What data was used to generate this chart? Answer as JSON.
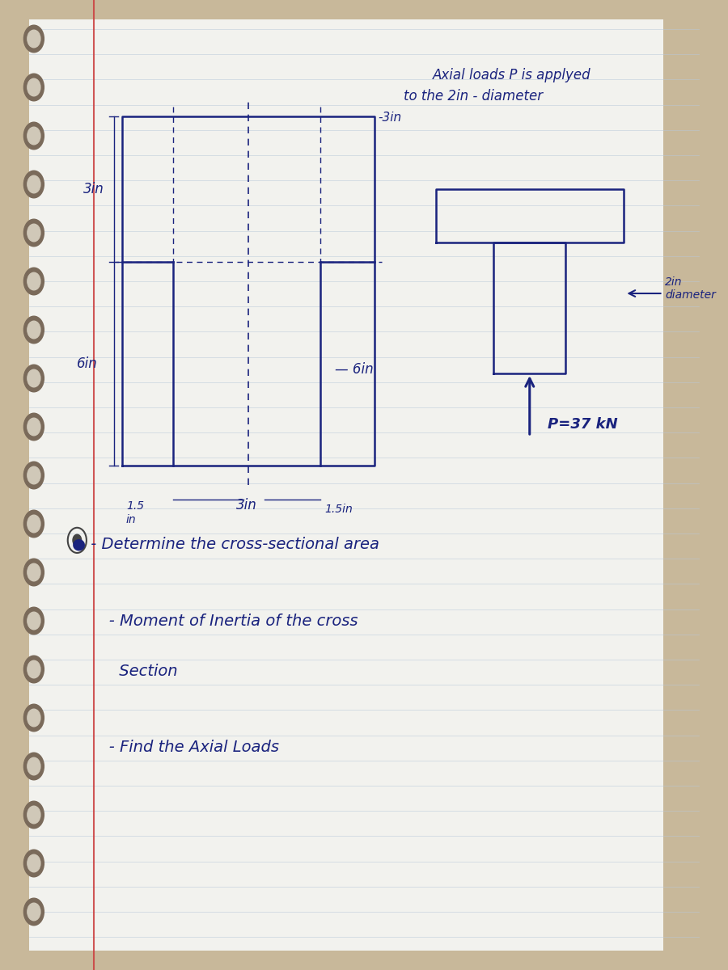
{
  "bg_color": "#c8b89a",
  "paper_color": "#f2f2ee",
  "line_color": "#b8c8d8",
  "ink_color": "#1a237e",
  "red_line_color": "#cc4444",
  "title_line1": "Axial loads P is applyed",
  "title_line2": "to the 2in - diameter",
  "label_minus3in": "-3in",
  "label_3in_left": "3in",
  "label_6in_left": "6in",
  "label_6in_mid": "— 6in",
  "label_3in_bottom": "3in",
  "label_15in_bottom1": "1.5",
  "label_15in_bottom2": "in",
  "label_15in_right": "1.5in",
  "label_2in_dia": "2in\ndiameter",
  "label_P": "P=37 kN",
  "bullet1": "● - Determine the cross-sectional area",
  "bullet2": "   - Moment of Inertia of the cross",
  "bullet2b": "     Section",
  "bullet3": "   - Find the Axial Loads"
}
